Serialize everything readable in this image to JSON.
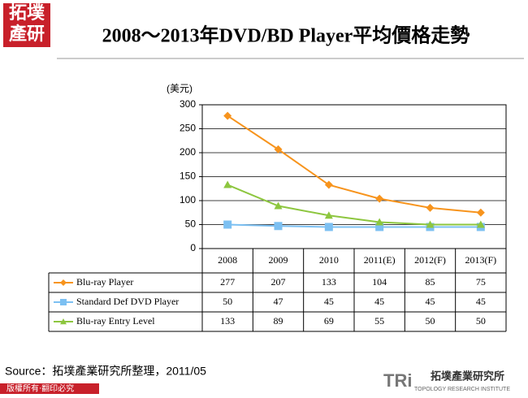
{
  "header": {
    "logo": [
      "拓墣",
      "產研"
    ]
  },
  "chart_data": {
    "type": "line",
    "title": "2008～2013年DVD/BD Player平均價格走勢",
    "y_label": "(美元)",
    "categories": [
      "2008",
      "2009",
      "2010",
      "2011(E)",
      "2012(F)",
      "2013(F)"
    ],
    "series": [
      {
        "name": "Blu-ray Player",
        "color": "#f7941d",
        "marker": "diamond",
        "values": [
          277,
          207,
          133,
          104,
          85,
          75
        ]
      },
      {
        "name": "Standard Def DVD Player",
        "color": "#7cc0f2",
        "marker": "square",
        "values": [
          50,
          47,
          45,
          45,
          45,
          45
        ]
      },
      {
        "name": "Blu-ray Entry Level",
        "color": "#8dc63f",
        "marker": "triangle",
        "values": [
          133,
          89,
          69,
          55,
          50,
          50
        ]
      }
    ],
    "ylim": [
      0,
      300
    ],
    "yticks": [
      0,
      50,
      100,
      150,
      200,
      250,
      300
    ],
    "grid": true,
    "data_table": true
  },
  "footer": {
    "source": "Source：拓墣產業研究所整理，2011/05",
    "copyright": "版權所有‧翻印必究",
    "brand": "TRi",
    "brand_cn": "拓墣產業研究所",
    "brand_en": "TOPOLOGY RESEARCH INSTITUTE"
  }
}
